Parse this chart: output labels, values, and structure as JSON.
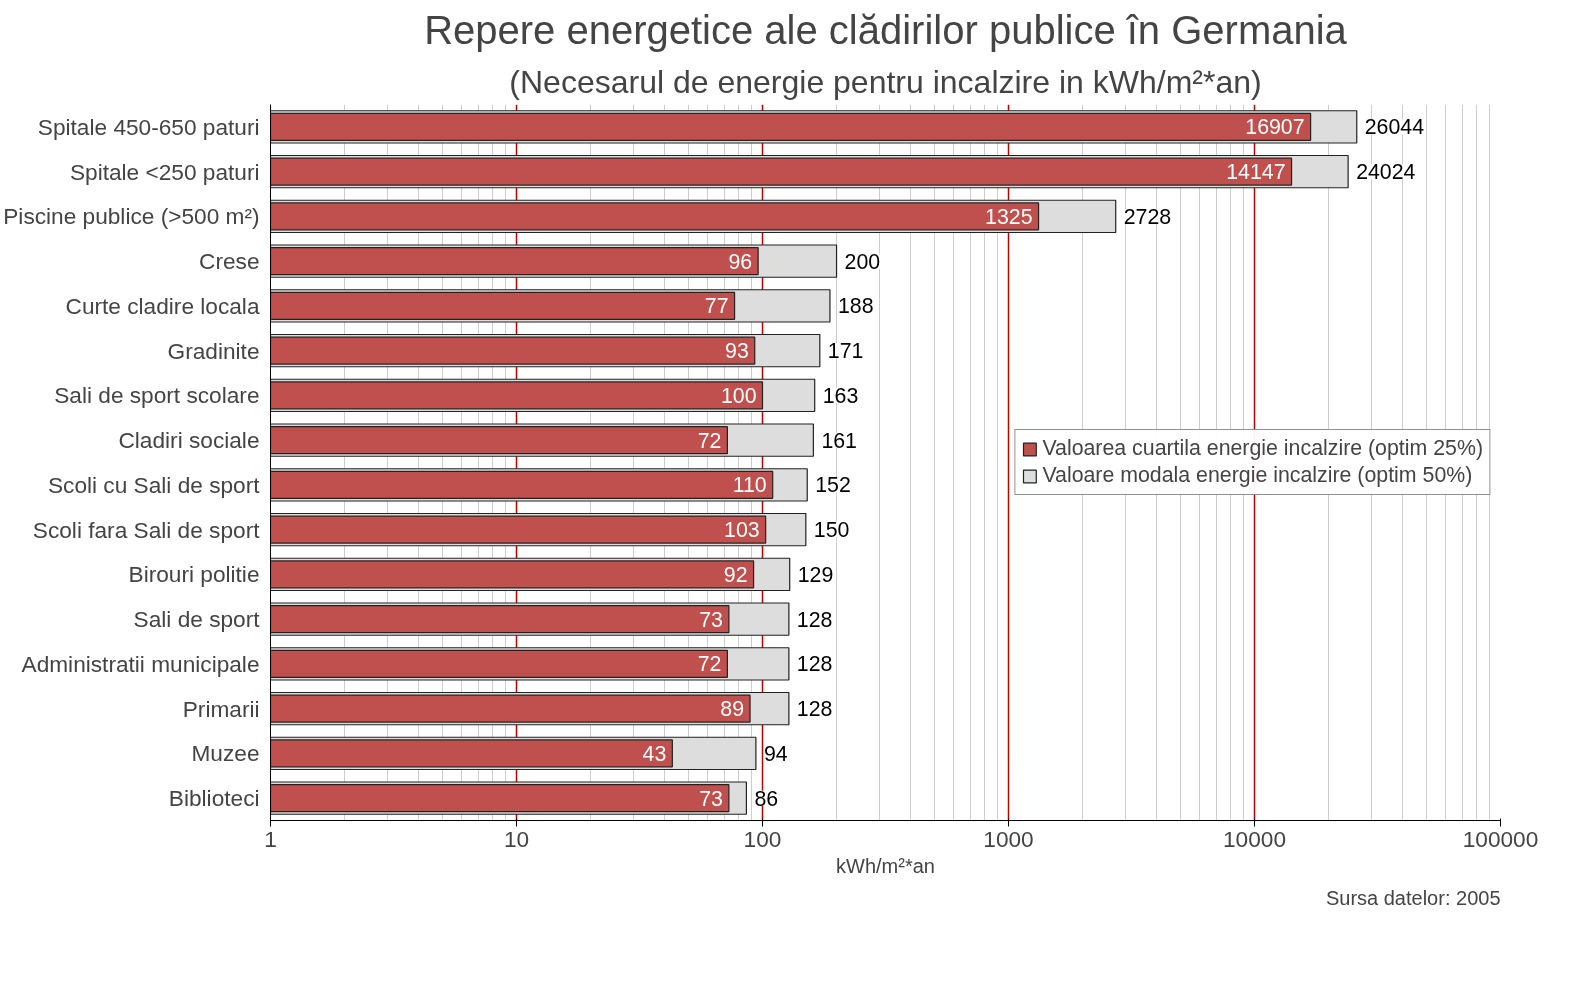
{
  "chart_data": {
    "type": "bar",
    "orientation": "horizontal",
    "title": "Repere energetice ale clădirilor publice în Germania",
    "subtitle": "(Necesarul de energie pentru incalzire in kWh/m²*an)",
    "xlabel": "kWh/m²*an",
    "categories": [
      "Spitale 450-650 paturi",
      "Spitale <250 paturi",
      "Piscine publice (>500 m²)",
      "Crese",
      "Curte cladire locala",
      "Gradinite",
      "Sali de sport scolare",
      "Cladiri sociale",
      "Scoli cu Sali de sport",
      "Scoli fara Sali de sport",
      "Birouri politie",
      "Sali de sport",
      "Administratii municipale",
      "Primarii",
      "Muzee",
      "Biblioteci"
    ],
    "series": [
      {
        "name": "Valoarea cuartila energie incalzire (optim 25%)",
        "color": "#c0504d",
        "values": [
          16907,
          14147,
          1325,
          96,
          77,
          93,
          100,
          72,
          110,
          103,
          92,
          73,
          72,
          89,
          43,
          73
        ]
      },
      {
        "name": "Valoare modala energie incalzire (optim 50%)",
        "color": "#dddddd",
        "values": [
          26044,
          24024,
          2728,
          200,
          188,
          171,
          163,
          161,
          152,
          150,
          129,
          128,
          128,
          128,
          94,
          86
        ]
      }
    ],
    "log": "x",
    "xlim": [
      1,
      100000
    ],
    "xticks": [
      1,
      10,
      100,
      1000,
      10000,
      100000
    ],
    "grid": "x",
    "legend": "right",
    "data_labels": true,
    "annotations": [
      "Sursa datelor: 2005"
    ]
  }
}
